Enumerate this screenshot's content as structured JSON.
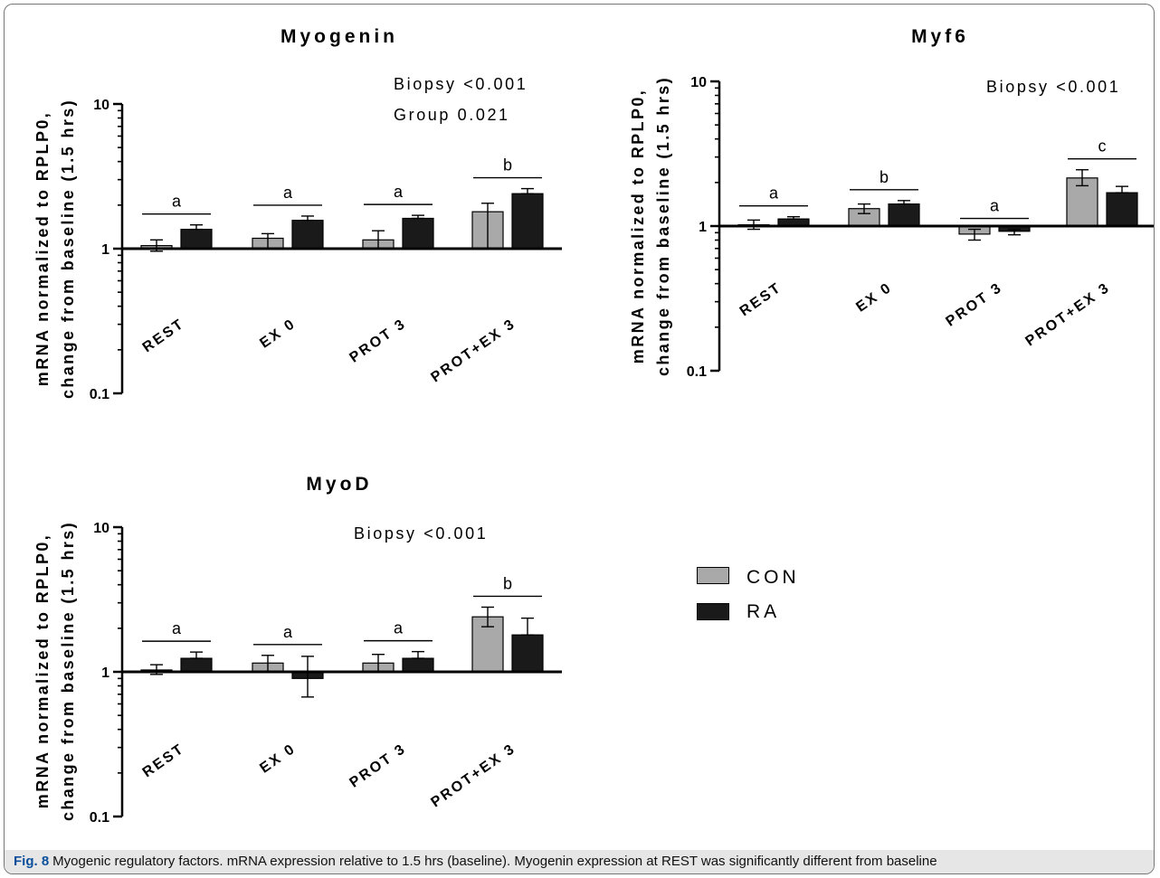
{
  "figure": {
    "caption_label": "Fig. 8",
    "caption_text": "Myogenic regulatory factors. mRNA expression relative to 1.5 hrs (baseline). Myogenin expression at REST was significantly different from baseline"
  },
  "legend": [
    {
      "name": "CON",
      "color": "#a9a9a9"
    },
    {
      "name": "RA",
      "color": "#1a1a1a"
    }
  ],
  "chart_data": [
    {
      "type": "bar",
      "title": "Myogenin",
      "ylabel": [
        "mRNA normalized to RPLP0,",
        "change from baseline (1.5 hrs)"
      ],
      "yscale": "log",
      "ylim": [
        0.1,
        10
      ],
      "yticks": [
        "10",
        "1",
        "0.1"
      ],
      "categories": [
        "REST",
        "EX 0",
        "PROT 3",
        "PROT+EX 3"
      ],
      "series": [
        {
          "name": "CON",
          "values": [
            1.05,
            1.18,
            1.15,
            1.8
          ],
          "err_hi": [
            1.15,
            1.27,
            1.33,
            2.06
          ],
          "err_lo": [
            0.96,
            1.0,
            0.99,
            1.0
          ]
        },
        {
          "name": "RA",
          "values": [
            1.36,
            1.57,
            1.62,
            2.4
          ],
          "err_hi": [
            1.46,
            1.68,
            1.7,
            2.6
          ],
          "err_lo": [
            1.36,
            1.57,
            1.62,
            2.4
          ]
        }
      ],
      "sig_letters": [
        "a",
        "a",
        "a",
        "b"
      ],
      "stats": [
        "Biopsy <0.001",
        "Group 0.021"
      ]
    },
    {
      "type": "bar",
      "title": "Myf6",
      "ylabel": [
        "mRNA normalized to RPLP0,",
        "change from baseline (1.5 hrs)"
      ],
      "yscale": "log",
      "ylim": [
        0.1,
        10
      ],
      "yticks": [
        "10",
        "1",
        "0.1"
      ],
      "categories": [
        "REST",
        "EX 0",
        "PROT 3",
        "PROT+EX 3"
      ],
      "series": [
        {
          "name": "CON",
          "values": [
            1.02,
            1.32,
            0.88,
            2.15
          ],
          "err_hi": [
            1.1,
            1.42,
            0.95,
            2.45
          ],
          "err_lo": [
            0.95,
            1.22,
            0.8,
            1.9
          ]
        },
        {
          "name": "RA",
          "values": [
            1.12,
            1.42,
            0.92,
            1.7
          ],
          "err_hi": [
            1.16,
            1.5,
            0.95,
            1.88
          ],
          "err_lo": [
            1.12,
            1.42,
            0.87,
            1.7
          ]
        }
      ],
      "sig_letters": [
        "a",
        "b",
        "a",
        "c"
      ],
      "stats": [
        "Biopsy <0.001"
      ]
    },
    {
      "type": "bar",
      "title": "MyoD",
      "ylabel": [
        "mRNA normalized to RPLP0,",
        "change from baseline (1.5 hrs)"
      ],
      "yscale": "log",
      "ylim": [
        0.1,
        10
      ],
      "yticks": [
        "10",
        "1",
        "0.1"
      ],
      "categories": [
        "REST",
        "EX 0",
        "PROT 3",
        "PROT+EX 3"
      ],
      "series": [
        {
          "name": "CON",
          "values": [
            1.03,
            1.15,
            1.15,
            2.4
          ],
          "err_hi": [
            1.12,
            1.3,
            1.32,
            2.8
          ],
          "err_lo": [
            0.96,
            1.0,
            1.0,
            2.05
          ]
        },
        {
          "name": "RA",
          "values": [
            1.24,
            0.9,
            1.24,
            1.8
          ],
          "err_hi": [
            1.37,
            1.28,
            1.38,
            2.35
          ],
          "err_lo": [
            1.24,
            0.67,
            1.24,
            1.8
          ]
        }
      ],
      "sig_letters": [
        "a",
        "a",
        "a",
        "b"
      ],
      "stats": [
        "Biopsy <0.001"
      ]
    }
  ]
}
